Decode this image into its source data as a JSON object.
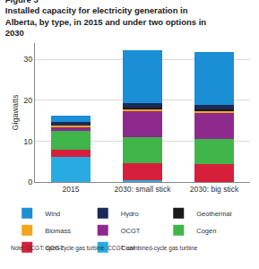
{
  "chart_data": {
    "type": "bar",
    "title": "Figure 3",
    "subtitle": "Installed capacity for electricity generation in Alberta, by type, in 2015 and under two options in 2030",
    "y_label": "Gigawatts",
    "note": "Note: OCGT: open-cycle gas turbine. CCGT: combined-cycle gas turbine",
    "categories": [
      "2015",
      "2030: small stick",
      "2030: big stick"
    ],
    "stacked": true,
    "grid": true,
    "legend": "bottom",
    "ylim": [
      0,
      34
    ],
    "yticks": [
      0,
      10,
      20,
      30
    ],
    "series": [
      {
        "name": "Coal",
        "color": "#29abe2",
        "values": [
          6.2,
          0.4,
          0
        ]
      },
      {
        "name": "CCGT",
        "color": "#d6203b",
        "values": [
          1.7,
          4.3,
          4.3
        ]
      },
      {
        "name": "Cogen",
        "color": "#3fb54a",
        "values": [
          4.6,
          6.2,
          6.2
        ]
      },
      {
        "name": "OCGT",
        "color": "#8e2a8d",
        "values": [
          0.9,
          6.4,
          6.4
        ]
      },
      {
        "name": "Biomass",
        "color": "#f3a51c",
        "values": [
          0.4,
          0.5,
          0.5
        ]
      },
      {
        "name": "Geothermal",
        "color": "#1a1a1a",
        "values": [
          0,
          0.4,
          0.4
        ]
      },
      {
        "name": "Hydro",
        "color": "#1c2a57",
        "values": [
          0.9,
          1.0,
          1.0
        ]
      },
      {
        "name": "Wind",
        "color": "#1b8fd6",
        "values": [
          1.5,
          13.1,
          13.1
        ]
      }
    ]
  }
}
